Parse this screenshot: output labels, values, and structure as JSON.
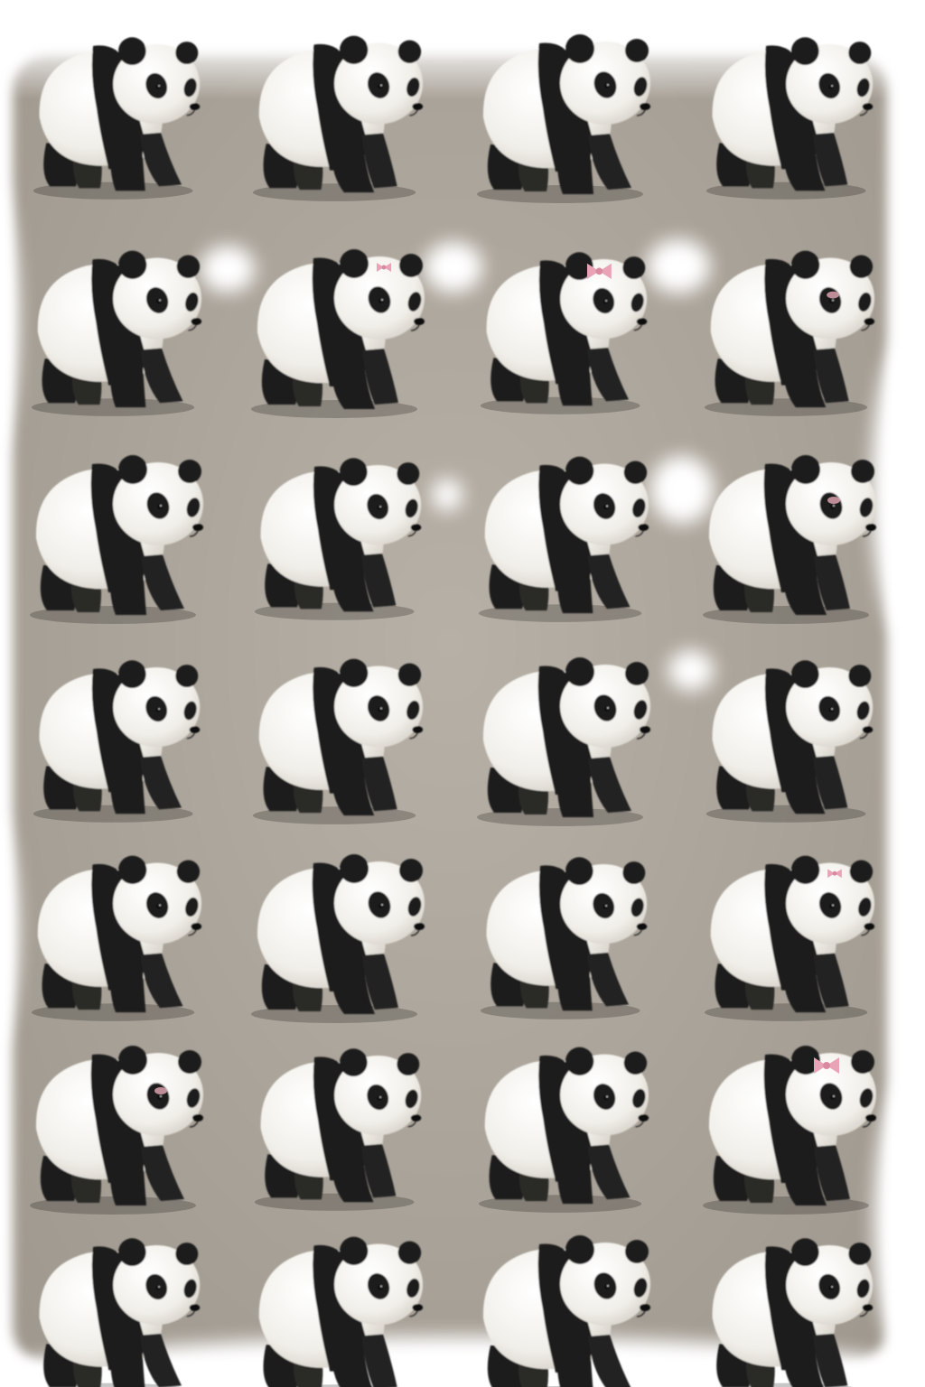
{
  "scene": {
    "subject": "panda-cub-figurines",
    "rows": 7,
    "columns": 4,
    "background_color": "#ffffff",
    "floor_color": "#aaa399"
  },
  "colors": {
    "fur_white": "#f1efe9",
    "fur_black": "#1d1c1b",
    "nose": "#111111",
    "bow_pink": "#e9a3b6",
    "blush_pink": "#e6a9b6"
  },
  "pandas": [
    {
      "row": 1,
      "col": 1,
      "accessory": "none"
    },
    {
      "row": 1,
      "col": 2,
      "accessory": "none"
    },
    {
      "row": 1,
      "col": 3,
      "accessory": "none"
    },
    {
      "row": 1,
      "col": 4,
      "accessory": "none"
    },
    {
      "row": 2,
      "col": 1,
      "accessory": "none"
    },
    {
      "row": 2,
      "col": 2,
      "accessory": "small-pink-bow"
    },
    {
      "row": 2,
      "col": 3,
      "accessory": "pink-bow"
    },
    {
      "row": 2,
      "col": 4,
      "accessory": "pink-blush"
    },
    {
      "row": 3,
      "col": 1,
      "accessory": "none"
    },
    {
      "row": 3,
      "col": 2,
      "accessory": "none"
    },
    {
      "row": 3,
      "col": 3,
      "accessory": "none"
    },
    {
      "row": 3,
      "col": 4,
      "accessory": "pink-blush"
    },
    {
      "row": 4,
      "col": 1,
      "accessory": "none"
    },
    {
      "row": 4,
      "col": 2,
      "accessory": "none"
    },
    {
      "row": 4,
      "col": 3,
      "accessory": "none"
    },
    {
      "row": 4,
      "col": 4,
      "accessory": "none"
    },
    {
      "row": 5,
      "col": 1,
      "accessory": "none"
    },
    {
      "row": 5,
      "col": 2,
      "accessory": "none"
    },
    {
      "row": 5,
      "col": 3,
      "accessory": "none"
    },
    {
      "row": 5,
      "col": 4,
      "accessory": "small-pink-bow"
    },
    {
      "row": 6,
      "col": 1,
      "accessory": "pink-blush"
    },
    {
      "row": 6,
      "col": 2,
      "accessory": "none"
    },
    {
      "row": 6,
      "col": 3,
      "accessory": "none"
    },
    {
      "row": 6,
      "col": 4,
      "accessory": "pink-bow"
    },
    {
      "row": 7,
      "col": 1,
      "accessory": "none"
    },
    {
      "row": 7,
      "col": 2,
      "accessory": "none"
    },
    {
      "row": 7,
      "col": 3,
      "accessory": "none"
    },
    {
      "row": 7,
      "col": 4,
      "accessory": "none"
    }
  ]
}
